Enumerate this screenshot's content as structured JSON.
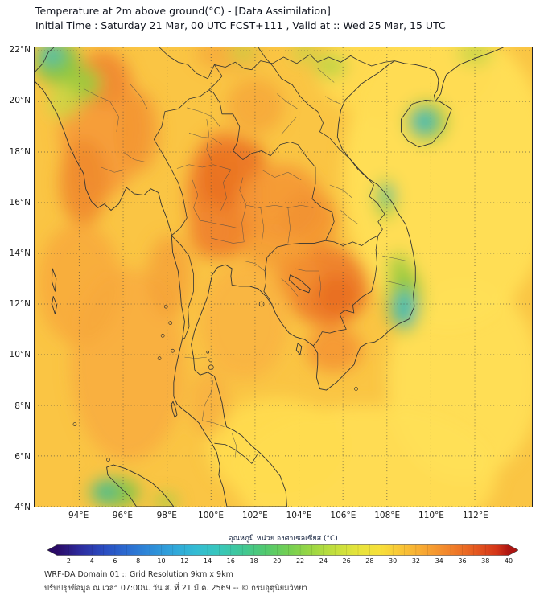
{
  "header": {
    "title_line1": "Temperature at 2m above ground(°C) - [Data Assimilation]",
    "title_line2": "Initial Time : Saturday 21 Mar, 00 UTC FCST+111 , Valid at :: Wed 25 Mar, 15 UTC"
  },
  "map": {
    "y_tick_labels": [
      "22°N",
      "20°N",
      "18°N",
      "16°N",
      "14°N",
      "12°N",
      "10°N",
      "8°N",
      "6°N",
      "4°N"
    ],
    "x_tick_labels": [
      "94°E",
      "96°E",
      "98°E",
      "100°E",
      "102°E",
      "104°E",
      "106°E",
      "108°E",
      "110°E",
      "112°E"
    ],
    "temperature_field_summary": [
      {
        "region": "Central and northern Thailand",
        "approx_temp_c": "34-36"
      },
      {
        "region": "Cambodia / lower Mekong",
        "approx_temp_c": "34-36"
      },
      {
        "region": "Myanmar central valley",
        "approx_temp_c": "33-35"
      },
      {
        "region": "Gulf of Thailand and Andaman Sea",
        "approx_temp_c": "30-32"
      },
      {
        "region": "Sea east of Vietnam",
        "approx_temp_c": "28-30"
      },
      {
        "region": "Vietnam central highlands",
        "approx_temp_c": "20-24"
      },
      {
        "region": "Hainan island",
        "approx_temp_c": "20-24"
      },
      {
        "region": "Mountains in top-left corner",
        "approx_temp_c": "20-24"
      }
    ]
  },
  "colorbar": {
    "label": "อุณหภูมิ หน่วย องศาเซลเซียส (°C)",
    "tick_values": [
      2,
      4,
      6,
      8,
      10,
      12,
      14,
      16,
      18,
      20,
      22,
      24,
      26,
      28,
      30,
      32,
      34,
      36,
      38,
      40
    ],
    "min_value": 1,
    "max_value": 40,
    "min_color": "#2a0a66",
    "max_color": "#ad1512"
  },
  "footer": {
    "line1": "WRF-DA Domain 01 :: Grid Resolution 9km x 9km",
    "line2": "ปรับปรุงข้อมูล ณ เวลา 07:00น. วัน ส. ที่ 21 มี.ค. 2569 -- © กรมอุตุนิยมวิทยา"
  }
}
